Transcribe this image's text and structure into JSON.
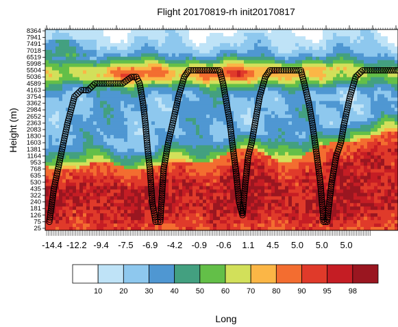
{
  "chart_data": {
    "type": "heatmap",
    "title": "Flight 20170819-rh  init20170817",
    "xlabel": "Long",
    "ylabel": "Height (m)",
    "x_tick_labels": [
      "-14.4",
      "-12.2",
      "-9.4",
      "-7.5",
      "-6.9",
      "-4.2",
      "-0.9",
      "-0.6",
      "1.1",
      "4.5",
      "5.0",
      "5.0",
      "5.0"
    ],
    "y_tick_labels": [
      "8364",
      "7941",
      "7491",
      "7018",
      "6519",
      "5998",
      "5504",
      "5036",
      "4589",
      "4163",
      "3754",
      "3362",
      "2984",
      "2652",
      "2363",
      "2083",
      "1830",
      "1603",
      "1381",
      "1164",
      "953",
      "768",
      "635",
      "530",
      "435",
      "322",
      "240",
      "181",
      "126",
      "75",
      "25"
    ],
    "colorbar": {
      "levels": [
        "10",
        "20",
        "30",
        "40",
        "50",
        "60",
        "70",
        "80",
        "90",
        "95",
        "98"
      ],
      "colors": [
        "#ffffff",
        "#bfe3f7",
        "#8ec8ee",
        "#4f97d2",
        "#43a080",
        "#63bf48",
        "#d2e05a",
        "#fbb646",
        "#f36d30",
        "#e03a2a",
        "#c51d24",
        "#9a1620"
      ]
    },
    "flight_track": {
      "marker": "open-circle",
      "points": [
        [
          0.0,
          75
        ],
        [
          0.4,
          435
        ],
        [
          1.0,
          1164
        ],
        [
          1.6,
          2363
        ],
        [
          2.2,
          3754
        ],
        [
          2.8,
          4163
        ],
        [
          3.4,
          4163
        ],
        [
          4.0,
          4589
        ],
        [
          5.2,
          4589
        ],
        [
          6.4,
          4589
        ],
        [
          7.2,
          5036
        ],
        [
          7.6,
          5036
        ],
        [
          7.9,
          4589
        ],
        [
          8.2,
          3362
        ],
        [
          8.4,
          2363
        ],
        [
          8.6,
          1381
        ],
        [
          8.8,
          768
        ],
        [
          9.0,
          240
        ],
        [
          9.3,
          75
        ],
        [
          9.7,
          75
        ],
        [
          10.0,
          768
        ],
        [
          10.4,
          1603
        ],
        [
          10.8,
          2363
        ],
        [
          11.3,
          3754
        ],
        [
          11.8,
          5036
        ],
        [
          12.2,
          5504
        ],
        [
          13.2,
          5504
        ],
        [
          14.2,
          5504
        ],
        [
          14.9,
          5504
        ],
        [
          15.2,
          4589
        ],
        [
          15.5,
          3362
        ],
        [
          15.8,
          2363
        ],
        [
          16.0,
          1603
        ],
        [
          16.3,
          768
        ],
        [
          16.6,
          240
        ],
        [
          16.9,
          126
        ],
        [
          17.1,
          435
        ],
        [
          17.4,
          1164
        ],
        [
          17.7,
          1603
        ],
        [
          18.0,
          2363
        ],
        [
          18.4,
          3754
        ],
        [
          18.9,
          5036
        ],
        [
          19.3,
          5504
        ],
        [
          20.3,
          5504
        ],
        [
          21.3,
          5504
        ],
        [
          22.0,
          5504
        ],
        [
          22.3,
          4589
        ],
        [
          22.7,
          3362
        ],
        [
          23.0,
          2363
        ],
        [
          23.4,
          1164
        ],
        [
          23.7,
          530
        ],
        [
          24.0,
          75
        ],
        [
          24.3,
          75
        ],
        [
          24.7,
          530
        ],
        [
          25.1,
          1164
        ],
        [
          25.5,
          1603
        ],
        [
          25.8,
          2363
        ],
        [
          26.3,
          3754
        ],
        [
          26.8,
          5036
        ],
        [
          27.4,
          5504
        ],
        [
          28.4,
          5504
        ],
        [
          29.4,
          5504
        ],
        [
          30.5,
          5504
        ]
      ]
    }
  }
}
